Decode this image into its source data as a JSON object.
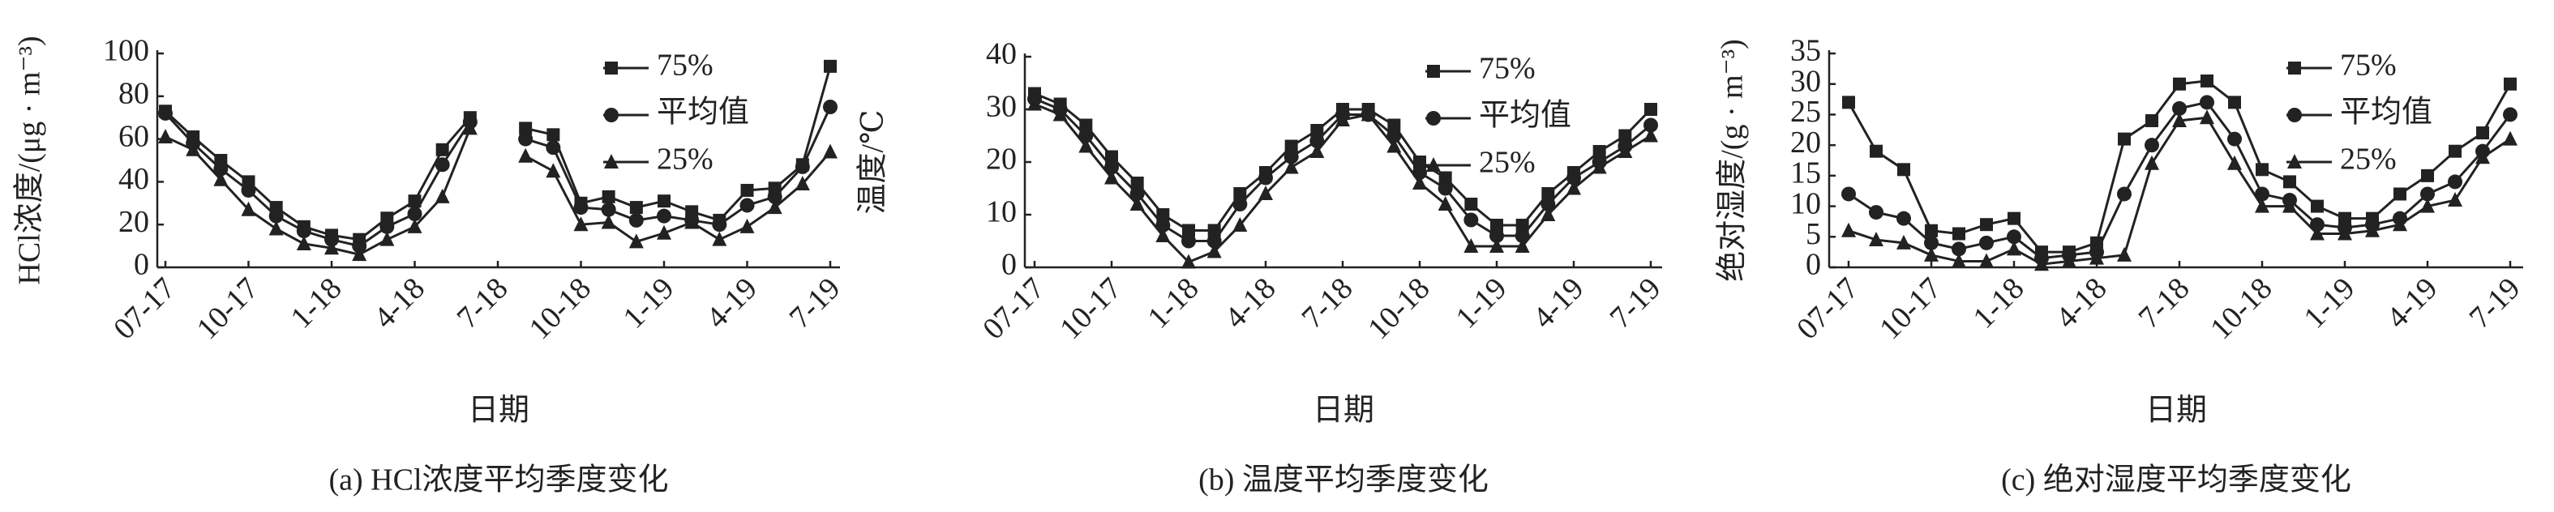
{
  "chart_data": [
    {
      "type": "line",
      "ylabel": "HCl浓度/(μg · m⁻³)",
      "xlabel": "日期",
      "caption": "(a) HCl浓度平均季度变化",
      "categories": [
        "07-17",
        null,
        null,
        "10-17",
        null,
        null,
        "1-18",
        null,
        null,
        "4-18",
        null,
        null,
        "7-18",
        null,
        null,
        "10-18",
        null,
        null,
        "1-19",
        null,
        null,
        "4-19",
        null,
        null,
        "7-19"
      ],
      "ylim": [
        0,
        100
      ],
      "yticks": [
        0,
        20,
        40,
        60,
        80,
        100
      ],
      "legend": "upper right",
      "series": [
        {
          "name": "75%",
          "color": "#222222",
          "marker": "square",
          "values": [
            73,
            61,
            50,
            40,
            28,
            19,
            15,
            13,
            23,
            31,
            55,
            70,
            null,
            65,
            62,
            30,
            33,
            28,
            31,
            26,
            22,
            36,
            37,
            48,
            94
          ]
        },
        {
          "name": "平均值",
          "color": "#222222",
          "marker": "circle",
          "values": [
            72,
            58,
            46,
            36,
            24,
            17,
            13,
            10,
            19,
            25,
            48,
            68,
            null,
            60,
            56,
            28,
            27,
            22,
            24,
            22,
            20,
            29,
            33,
            47,
            75
          ]
        },
        {
          "name": "25%",
          "color": "#222222",
          "marker": "triangle",
          "values": [
            61,
            55,
            41,
            27,
            18,
            11,
            9,
            6,
            13,
            19,
            33,
            65,
            null,
            52,
            45,
            20,
            21,
            12,
            16,
            21,
            13,
            19,
            28,
            39,
            54
          ]
        }
      ]
    },
    {
      "type": "line",
      "ylabel": "温度/℃",
      "xlabel": "日期",
      "caption": "(b) 温度平均季度变化",
      "categories": [
        "07-17",
        null,
        null,
        "10-17",
        null,
        null,
        "1-18",
        null,
        null,
        "4-18",
        null,
        null,
        "7-18",
        null,
        null,
        "10-18",
        null,
        null,
        "1-19",
        null,
        null,
        "4-19",
        null,
        null,
        "7-19"
      ],
      "ylim": [
        0,
        40
      ],
      "yticks": [
        0,
        10,
        20,
        30,
        40
      ],
      "legend": "upper right",
      "series": [
        {
          "name": "75%",
          "color": "#222222",
          "marker": "square",
          "values": [
            33,
            31,
            27,
            21,
            16,
            10,
            7,
            7,
            14,
            18,
            23,
            26,
            30,
            30,
            27,
            20,
            17,
            12,
            8,
            8,
            14,
            18,
            22,
            25,
            30
          ]
        },
        {
          "name": "平均值",
          "color": "#222222",
          "marker": "circle",
          "values": [
            32,
            30,
            25,
            19,
            14,
            8,
            5,
            5,
            12,
            17,
            21,
            24,
            29,
            29,
            25,
            18,
            15,
            9,
            6,
            6,
            12,
            17,
            20,
            23,
            27
          ]
        },
        {
          "name": "25%",
          "color": "#222222",
          "marker": "triangle",
          "values": [
            31,
            29,
            23,
            17,
            12,
            6,
            1,
            3,
            8,
            14,
            19,
            22,
            28,
            29,
            23,
            16,
            12,
            4,
            4,
            4,
            10,
            15,
            19,
            22,
            25
          ]
        }
      ]
    },
    {
      "type": "line",
      "ylabel": "绝对湿度/(g · m⁻³)",
      "xlabel": "日期",
      "caption": "(c) 绝对湿度平均季度变化",
      "categories": [
        "07-17",
        null,
        null,
        "10-17",
        null,
        null,
        "1-18",
        null,
        null,
        "4-18",
        null,
        null,
        "7-18",
        null,
        null,
        "10-18",
        null,
        null,
        "1-19",
        null,
        null,
        "4-19",
        null,
        null,
        "7-19"
      ],
      "ylim": [
        0,
        35
      ],
      "yticks": [
        0,
        5,
        10,
        15,
        20,
        25,
        30,
        35
      ],
      "legend": "upper right",
      "series": [
        {
          "name": "75%",
          "color": "#222222",
          "marker": "square",
          "values": [
            27,
            19,
            16,
            6,
            5.5,
            7,
            8,
            2.5,
            2.5,
            4,
            21,
            24,
            30,
            30.5,
            27,
            16,
            14,
            10,
            8,
            8,
            12,
            15,
            19,
            22,
            30
          ]
        },
        {
          "name": "平均值",
          "color": "#222222",
          "marker": "circle",
          "values": [
            12,
            9,
            8,
            4,
            3,
            4,
            5,
            1.5,
            2,
            2.5,
            12,
            20,
            26,
            27,
            21,
            12,
            11,
            7,
            6.5,
            7,
            8,
            12,
            14,
            19,
            25
          ]
        },
        {
          "name": "25%",
          "color": "#222222",
          "marker": "triangle",
          "values": [
            6,
            4.5,
            4,
            2,
            1,
            1,
            3,
            0.5,
            1,
            1.5,
            2,
            17,
            24,
            24.5,
            17,
            10,
            10,
            5.5,
            5.5,
            6,
            7,
            10,
            11,
            18,
            21
          ]
        }
      ]
    }
  ]
}
